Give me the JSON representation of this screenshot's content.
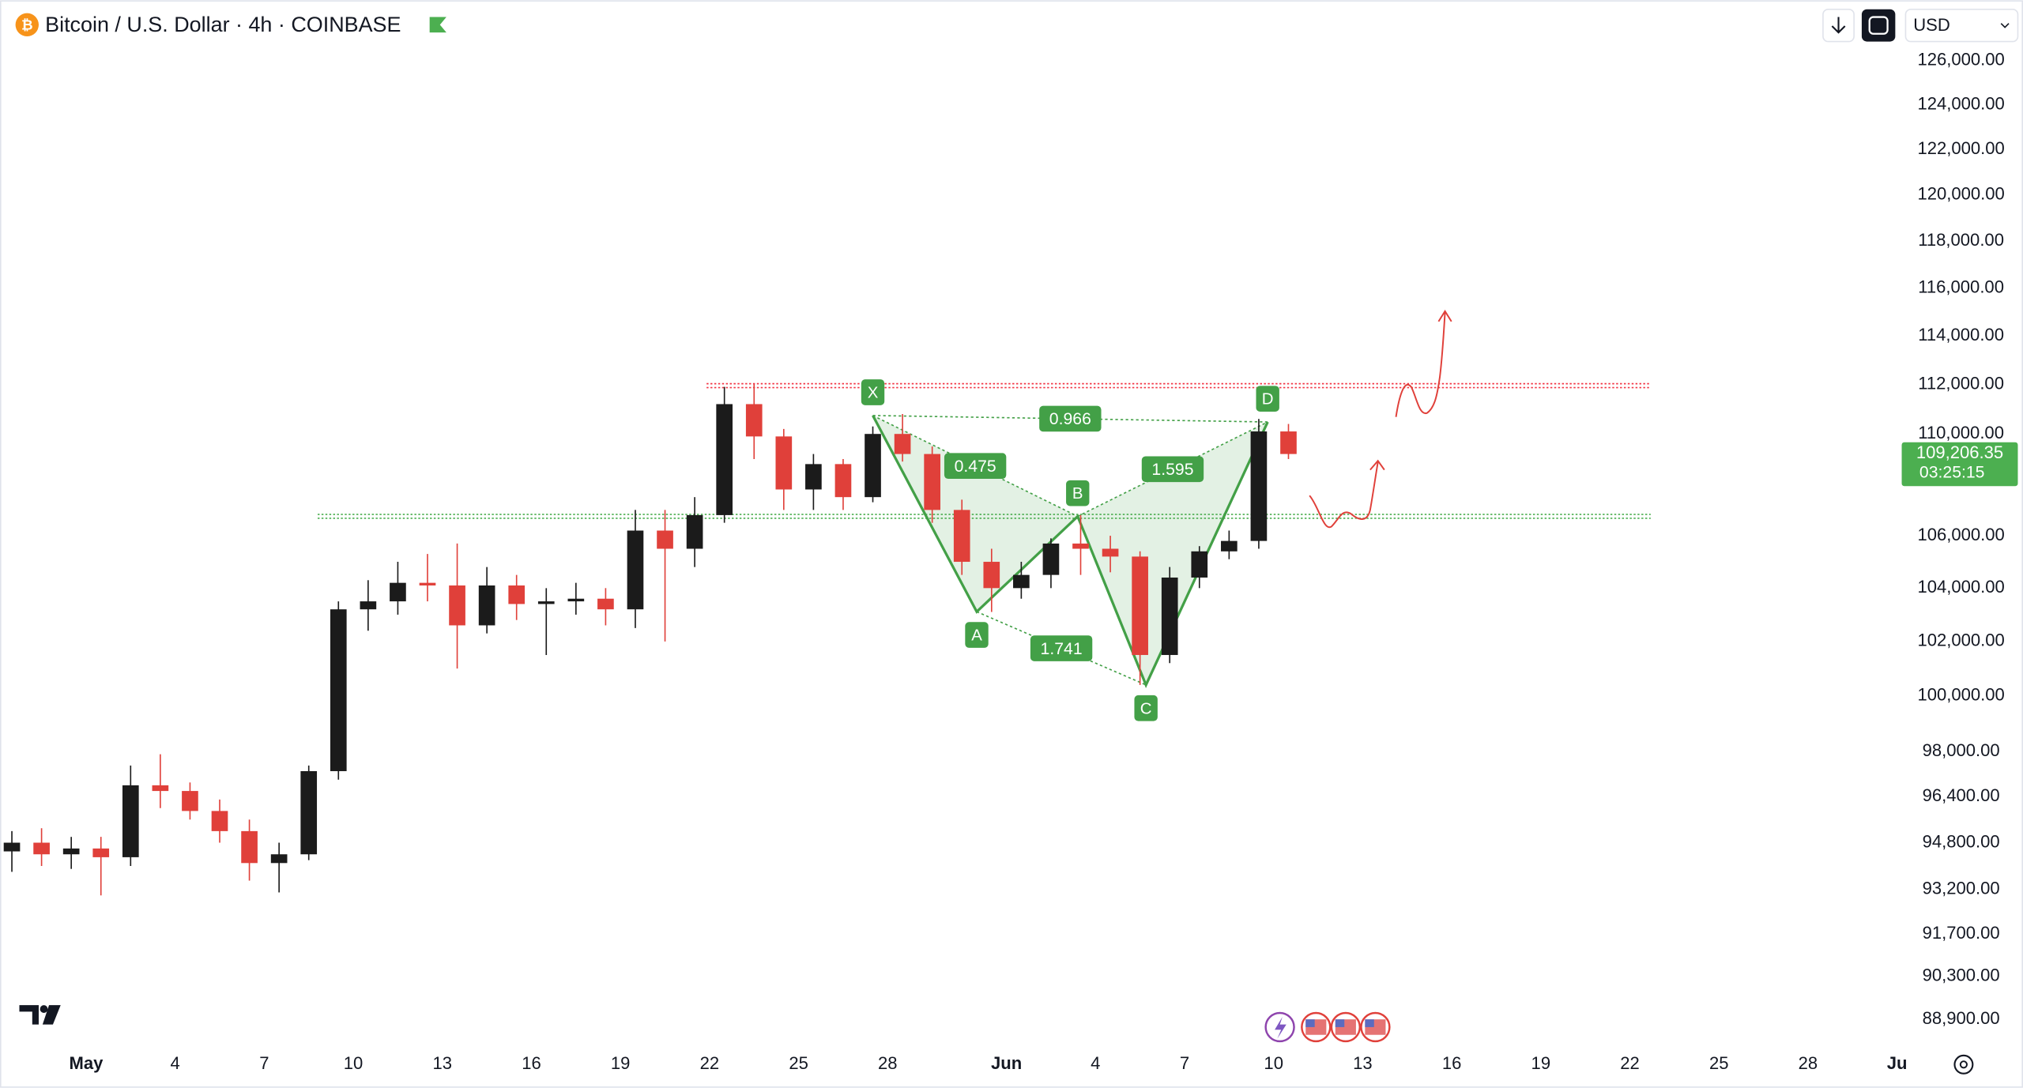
{
  "chart_data": {
    "type": "candlestick",
    "title": "Bitcoin / U.S. Dollar · 4h · COINBASE",
    "currency": "USD",
    "log_scale": true,
    "up_color": "#1b1b1b",
    "down_color": "#e0403a",
    "pattern_color": "#43a047",
    "xlim": [
      -2.9,
      61.2
    ],
    "ylim": [
      88150,
      128800
    ],
    "xticks": [
      {
        "value": 0,
        "label": "May"
      },
      {
        "value": 3,
        "label": "4"
      },
      {
        "value": 6,
        "label": "7"
      },
      {
        "value": 9,
        "label": "10"
      },
      {
        "value": 12,
        "label": "13"
      },
      {
        "value": 15,
        "label": "16"
      },
      {
        "value": 18,
        "label": "19"
      },
      {
        "value": 21,
        "label": "22"
      },
      {
        "value": 24,
        "label": "25"
      },
      {
        "value": 27,
        "label": "28"
      },
      {
        "value": 31,
        "label": "Jun"
      },
      {
        "value": 34,
        "label": "4"
      },
      {
        "value": 37,
        "label": "7"
      },
      {
        "value": 40,
        "label": "10"
      },
      {
        "value": 43,
        "label": "13"
      },
      {
        "value": 46,
        "label": "16"
      },
      {
        "value": 49,
        "label": "19"
      },
      {
        "value": 52,
        "label": "22"
      },
      {
        "value": 55,
        "label": "25"
      },
      {
        "value": 58,
        "label": "28"
      },
      {
        "value": 61,
        "label": "Ju"
      }
    ],
    "yticks": [
      {
        "value": 126000,
        "label": "126,000.00"
      },
      {
        "value": 124000,
        "label": "124,000.00"
      },
      {
        "value": 122000,
        "label": "122,000.00"
      },
      {
        "value": 120000,
        "label": "120,000.00"
      },
      {
        "value": 118000,
        "label": "118,000.00"
      },
      {
        "value": 116000,
        "label": "116,000.00"
      },
      {
        "value": 114000,
        "label": "114,000.00"
      },
      {
        "value": 112000,
        "label": "112,000.00"
      },
      {
        "value": 110000,
        "label": "110,000.00"
      },
      {
        "value": 106000,
        "label": "106,000.00"
      },
      {
        "value": 104000,
        "label": "104,000.00"
      },
      {
        "value": 102000,
        "label": "102,000.00"
      },
      {
        "value": 100000,
        "label": "100,000.00"
      },
      {
        "value": 98000,
        "label": "98,000.00"
      },
      {
        "value": 96400,
        "label": "96,400.00"
      },
      {
        "value": 94800,
        "label": "94,800.00"
      },
      {
        "value": 93200,
        "label": "93,200.00"
      },
      {
        "value": 91700,
        "label": "91,700.00"
      },
      {
        "value": 90300,
        "label": "90,300.00"
      },
      {
        "value": 88900,
        "label": "88,900.00"
      }
    ],
    "x": [
      -3,
      -2,
      -1,
      0,
      1,
      2,
      3,
      4,
      5,
      6,
      7,
      8,
      9,
      10,
      11,
      12,
      13,
      14,
      15,
      16,
      17,
      18,
      19,
      20,
      21,
      22,
      23,
      24,
      25,
      26,
      27,
      28,
      29,
      30,
      31,
      32,
      33,
      34,
      35,
      36,
      37,
      38,
      39,
      40
    ],
    "open": [
      94500,
      94800,
      94400,
      94600,
      94300,
      96800,
      96600,
      95900,
      95200,
      94100,
      94400,
      97300,
      103200,
      103500,
      104200,
      104100,
      102600,
      104100,
      103400,
      103500,
      103600,
      103200,
      106200,
      105500,
      106800,
      111200,
      109900,
      107800,
      108800,
      107500,
      110000,
      109200,
      107000,
      105000,
      104000,
      104500,
      105700,
      105500,
      105200,
      101500,
      104400,
      105400,
      105800,
      110100
    ],
    "high": [
      95200,
      95300,
      95000,
      95000,
      97500,
      97900,
      96900,
      96300,
      95600,
      94800,
      97500,
      103500,
      104300,
      105000,
      105300,
      105700,
      104800,
      104500,
      104000,
      104200,
      104000,
      107000,
      107000,
      107500,
      111900,
      112000,
      110200,
      109200,
      109000,
      110300,
      110800,
      109500,
      107400,
      105500,
      105000,
      105900,
      106800,
      106000,
      105400,
      104800,
      105600,
      106200,
      110600,
      110400
    ],
    "low": [
      93800,
      94000,
      93900,
      93000,
      94000,
      96000,
      95600,
      94800,
      93500,
      93100,
      94200,
      97000,
      102400,
      103000,
      103500,
      101000,
      102300,
      102800,
      101500,
      103000,
      102600,
      102500,
      102000,
      104800,
      106500,
      109000,
      107000,
      107000,
      107000,
      107300,
      108900,
      106500,
      104500,
      103100,
      103600,
      104000,
      104500,
      104600,
      100400,
      101200,
      104000,
      105100,
      105500,
      109000
    ],
    "close": [
      94800,
      94400,
      94600,
      94300,
      96800,
      96600,
      95900,
      95200,
      94100,
      94400,
      97300,
      103200,
      103500,
      104200,
      104100,
      102600,
      104100,
      103400,
      103500,
      103600,
      103200,
      106200,
      105500,
      106800,
      111200,
      109900,
      107800,
      108800,
      107500,
      110000,
      109200,
      107000,
      105000,
      104000,
      104500,
      105700,
      105500,
      105200,
      101500,
      104400,
      105400,
      105800,
      110100,
      109200
    ],
    "levels": [
      {
        "value": 111950,
        "start": 20.9,
        "end": 52.7,
        "color": "#f23645"
      },
      {
        "value": 106750,
        "start": 7.8,
        "end": 52.7,
        "color": "#4caf50"
      }
    ],
    "pattern": {
      "points": [
        {
          "label": "X",
          "x": 26.5,
          "y": 110740
        },
        {
          "label": "A",
          "x": 30.0,
          "y": 103110
        },
        {
          "label": "B",
          "x": 33.4,
          "y": 106750
        },
        {
          "label": "C",
          "x": 35.7,
          "y": 100400
        },
        {
          "label": "D",
          "x": 39.8,
          "y": 110480
        }
      ],
      "ratios": [
        {
          "from": 0,
          "to": 4,
          "value": 0.966
        },
        {
          "from": 0,
          "to": 2,
          "value": 0.475
        },
        {
          "from": 2,
          "to": 4,
          "value": 1.595
        },
        {
          "from": 1,
          "to": 3,
          "value": 1.741
        }
      ]
    },
    "last_price": {
      "value": 109206.35,
      "label": "109,206.35"
    },
    "countdown": "03:25:15"
  }
}
